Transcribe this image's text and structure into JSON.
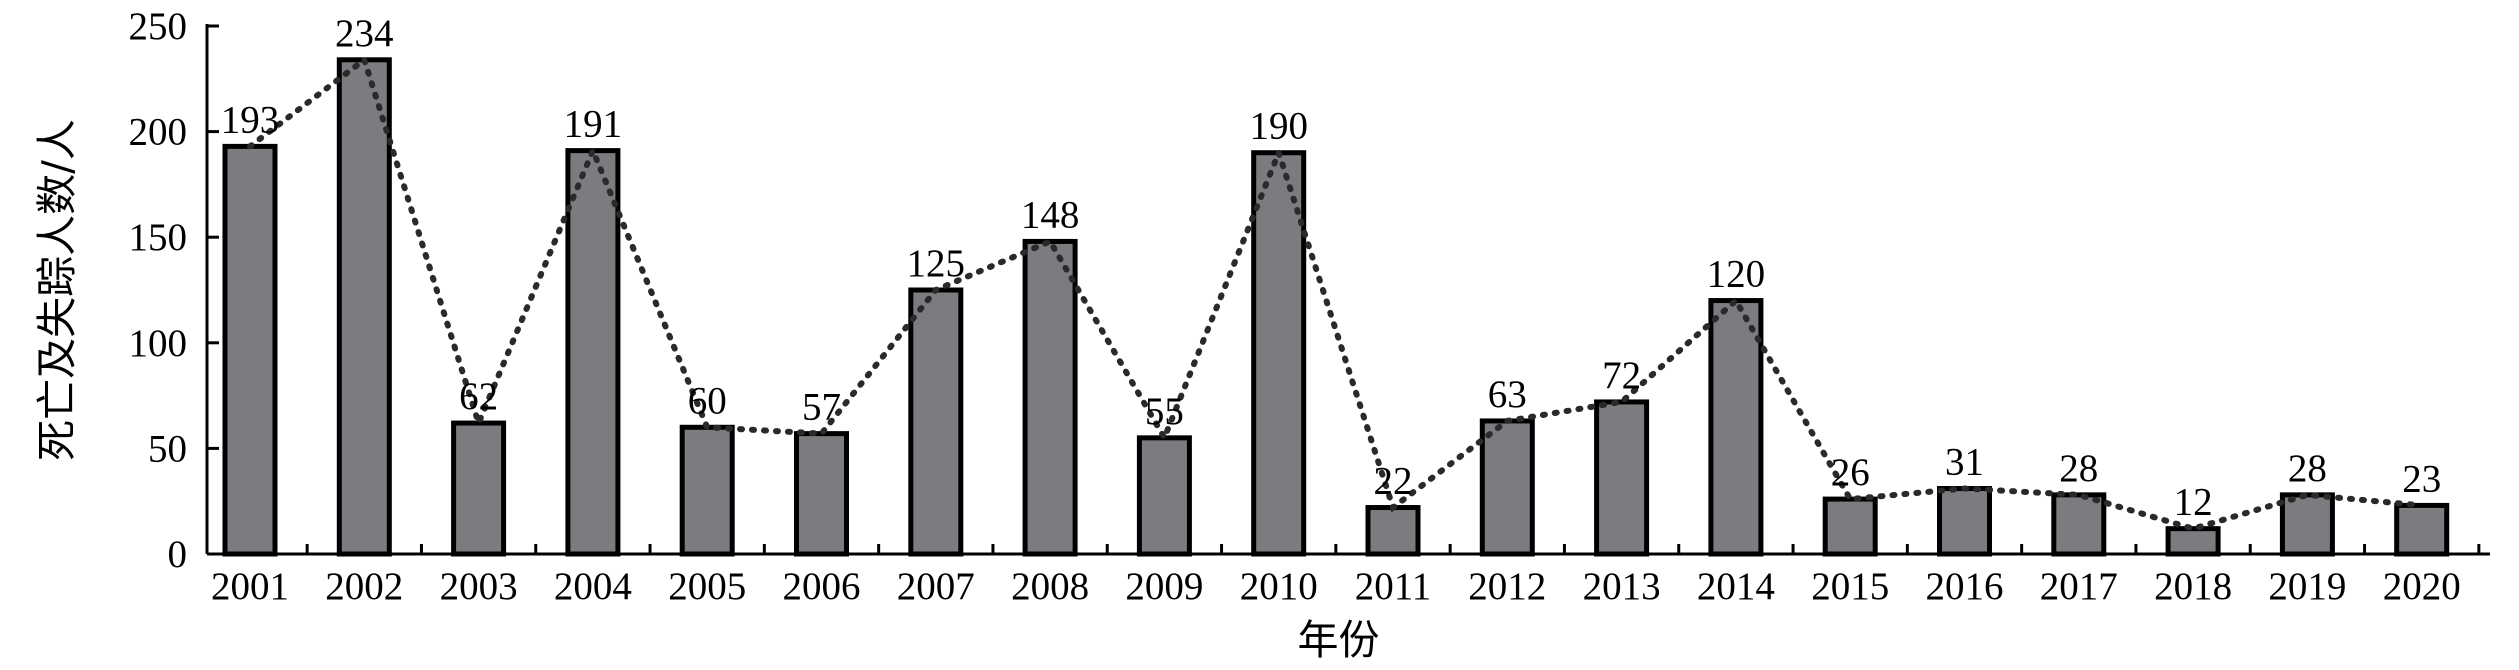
{
  "chart_data": {
    "type": "bar",
    "categories": [
      "2001",
      "2002",
      "2003",
      "2004",
      "2005",
      "2006",
      "2007",
      "2008",
      "2009",
      "2010",
      "2011",
      "2012",
      "2013",
      "2014",
      "2015",
      "2016",
      "2017",
      "2018",
      "2019",
      "2020"
    ],
    "values": [
      193,
      234,
      62,
      191,
      60,
      57,
      125,
      148,
      55,
      190,
      22,
      63,
      72,
      120,
      26,
      31,
      28,
      12,
      28,
      23
    ],
    "data_labels": [
      "193",
      "234",
      "62",
      "191",
      "60",
      "57",
      "125",
      "148",
      "55",
      "190",
      "22",
      "63",
      "72",
      "120",
      "26",
      "31",
      "28",
      "12",
      "28",
      "23"
    ],
    "overlay": "dotted-line",
    "xlabel": "年份",
    "ylabel": "死亡及失踪人数/人",
    "ylim": [
      0,
      250
    ],
    "yticks": [
      0,
      50,
      100,
      150,
      200,
      250
    ],
    "grid": false,
    "legend": "none",
    "colors": {
      "bar_fill": "#7b7c80",
      "bar_edge": "#000000",
      "trend_line": "#2a2a2a"
    }
  }
}
